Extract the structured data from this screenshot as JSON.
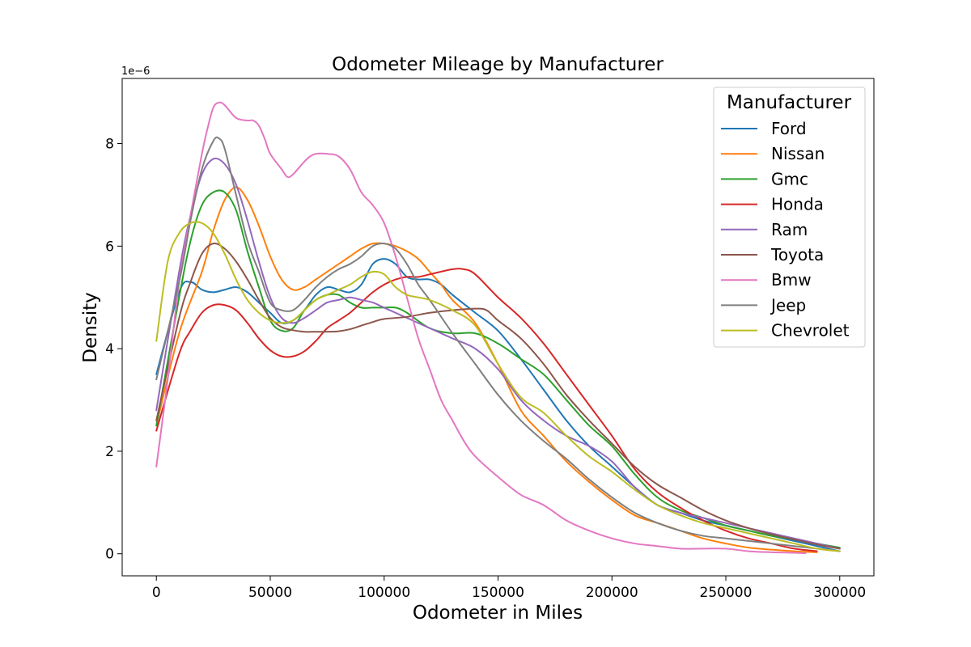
{
  "chart_data": {
    "type": "line",
    "title": "Odometer Mileage by Manufacturer",
    "xlabel": "Odometer in Miles",
    "ylabel": "Density",
    "y_scale_label": "1e−6",
    "y_multiplier": 1e-06,
    "xlim": [
      -15000,
      315000
    ],
    "ylim": [
      -0.43,
      9.27
    ],
    "xticks": [
      0,
      50000,
      100000,
      150000,
      200000,
      250000,
      300000
    ],
    "xtick_labels": [
      "0",
      "50000",
      "100000",
      "150000",
      "200000",
      "250000",
      "300000"
    ],
    "yticks": [
      0,
      2,
      4,
      6,
      8
    ],
    "ytick_labels": [
      "0",
      "2",
      "4",
      "6",
      "8"
    ],
    "grid": false,
    "legend_title": "Manufacturer",
    "legend_position": "top-right",
    "series": [
      {
        "name": "Ford",
        "color": "#1f77b4",
        "x": [
          0,
          10000,
          15000,
          20000,
          25000,
          30000,
          35000,
          40000,
          45000,
          50000,
          55000,
          60000,
          65000,
          70000,
          75000,
          80000,
          85000,
          90000,
          95000,
          100000,
          105000,
          110000,
          115000,
          120000,
          125000,
          130000,
          140000,
          150000,
          160000,
          170000,
          180000,
          190000,
          200000,
          210000,
          220000,
          230000,
          240000,
          250000,
          260000,
          270000,
          280000,
          290000,
          300000
        ],
        "y": [
          3.5,
          5.1,
          5.3,
          5.15,
          5.1,
          5.15,
          5.2,
          5.1,
          4.9,
          4.7,
          4.5,
          4.55,
          4.75,
          5.05,
          5.2,
          5.15,
          5.1,
          5.25,
          5.65,
          5.75,
          5.65,
          5.4,
          5.35,
          5.35,
          5.25,
          5.05,
          4.7,
          4.35,
          3.8,
          3.2,
          2.6,
          2.1,
          1.7,
          1.3,
          0.95,
          0.8,
          0.65,
          0.55,
          0.45,
          0.35,
          0.25,
          0.15,
          0.05
        ]
      },
      {
        "name": "Nissan",
        "color": "#ff7f0e",
        "x": [
          0,
          10000,
          20000,
          25000,
          30000,
          35000,
          40000,
          45000,
          50000,
          55000,
          60000,
          65000,
          70000,
          75000,
          80000,
          85000,
          90000,
          95000,
          100000,
          105000,
          110000,
          115000,
          120000,
          125000,
          130000,
          140000,
          150000,
          160000,
          170000,
          180000,
          190000,
          200000,
          210000,
          220000,
          230000,
          240000,
          250000,
          260000,
          270000,
          280000,
          290000
        ],
        "y": [
          2.5,
          4.3,
          5.5,
          6.3,
          6.9,
          7.15,
          6.9,
          6.4,
          5.8,
          5.35,
          5.15,
          5.2,
          5.35,
          5.5,
          5.65,
          5.8,
          5.95,
          6.05,
          6.05,
          6.0,
          5.9,
          5.75,
          5.5,
          5.25,
          4.95,
          4.5,
          3.7,
          2.8,
          2.3,
          1.8,
          1.4,
          1.05,
          0.75,
          0.6,
          0.45,
          0.3,
          0.2,
          0.12,
          0.08,
          0.05,
          0.03
        ]
      },
      {
        "name": "Gmc",
        "color": "#2ca02c",
        "x": [
          0,
          10000,
          15000,
          20000,
          25000,
          30000,
          35000,
          40000,
          45000,
          50000,
          55000,
          60000,
          65000,
          70000,
          75000,
          80000,
          85000,
          90000,
          95000,
          100000,
          105000,
          110000,
          120000,
          130000,
          140000,
          150000,
          160000,
          170000,
          180000,
          190000,
          200000,
          210000,
          220000,
          230000,
          240000,
          250000,
          260000,
          270000,
          280000,
          290000,
          300000
        ],
        "y": [
          2.5,
          5.0,
          6.1,
          6.8,
          7.05,
          7.05,
          6.7,
          5.9,
          5.2,
          4.55,
          4.35,
          4.4,
          4.75,
          4.95,
          5.05,
          5.05,
          4.9,
          4.8,
          4.8,
          4.8,
          4.8,
          4.7,
          4.4,
          4.3,
          4.3,
          4.1,
          3.8,
          3.5,
          3.0,
          2.5,
          2.1,
          1.55,
          1.1,
          0.85,
          0.7,
          0.55,
          0.45,
          0.35,
          0.28,
          0.2,
          0.12
        ]
      },
      {
        "name": "Honda",
        "color": "#d62728",
        "x": [
          0,
          10000,
          15000,
          20000,
          25000,
          30000,
          35000,
          40000,
          45000,
          50000,
          55000,
          60000,
          65000,
          70000,
          75000,
          80000,
          85000,
          90000,
          95000,
          100000,
          105000,
          110000,
          115000,
          120000,
          130000,
          135000,
          140000,
          150000,
          160000,
          170000,
          180000,
          190000,
          200000,
          210000,
          220000,
          230000,
          240000,
          250000,
          260000,
          270000,
          280000,
          290000
        ],
        "y": [
          2.4,
          3.9,
          4.35,
          4.7,
          4.85,
          4.85,
          4.75,
          4.5,
          4.2,
          3.97,
          3.85,
          3.85,
          3.95,
          4.15,
          4.4,
          4.55,
          4.7,
          4.9,
          5.1,
          5.25,
          5.35,
          5.4,
          5.4,
          5.45,
          5.55,
          5.55,
          5.45,
          5.0,
          4.6,
          4.1,
          3.5,
          2.9,
          2.3,
          1.65,
          1.2,
          0.9,
          0.65,
          0.45,
          0.3,
          0.2,
          0.1,
          0.05
        ]
      },
      {
        "name": "Ram",
        "color": "#9467bd",
        "x": [
          0,
          10000,
          15000,
          20000,
          25000,
          30000,
          35000,
          40000,
          45000,
          50000,
          55000,
          60000,
          65000,
          70000,
          75000,
          80000,
          85000,
          90000,
          95000,
          100000,
          110000,
          120000,
          130000,
          140000,
          150000,
          160000,
          170000,
          180000,
          190000,
          200000,
          210000,
          220000,
          230000,
          240000,
          250000,
          260000,
          270000,
          280000,
          290000,
          300000
        ],
        "y": [
          2.8,
          5.5,
          6.6,
          7.4,
          7.7,
          7.6,
          7.2,
          6.5,
          5.7,
          5.0,
          4.6,
          4.5,
          4.6,
          4.75,
          4.9,
          4.95,
          5.0,
          4.95,
          4.9,
          4.8,
          4.6,
          4.4,
          4.2,
          4.0,
          3.6,
          3.0,
          2.6,
          2.3,
          2.1,
          1.8,
          1.3,
          0.95,
          0.8,
          0.7,
          0.6,
          0.5,
          0.4,
          0.3,
          0.2,
          0.1
        ]
      },
      {
        "name": "Toyota",
        "color": "#8c564b",
        "x": [
          0,
          10000,
          15000,
          20000,
          25000,
          30000,
          35000,
          40000,
          45000,
          50000,
          55000,
          60000,
          65000,
          70000,
          75000,
          80000,
          85000,
          90000,
          95000,
          100000,
          110000,
          120000,
          130000,
          140000,
          145000,
          150000,
          160000,
          170000,
          180000,
          190000,
          200000,
          210000,
          220000,
          230000,
          240000,
          250000,
          260000,
          270000,
          280000,
          290000,
          300000
        ],
        "y": [
          2.6,
          4.6,
          5.3,
          5.85,
          6.05,
          5.95,
          5.7,
          5.35,
          4.95,
          4.6,
          4.42,
          4.36,
          4.33,
          4.33,
          4.33,
          4.34,
          4.38,
          4.45,
          4.52,
          4.58,
          4.62,
          4.7,
          4.75,
          4.78,
          4.75,
          4.55,
          4.2,
          3.7,
          3.1,
          2.6,
          2.15,
          1.7,
          1.35,
          1.1,
          0.85,
          0.65,
          0.5,
          0.38,
          0.28,
          0.18,
          0.1
        ]
      },
      {
        "name": "Bmw",
        "color": "#e377c2",
        "x": [
          0,
          5000,
          10000,
          15000,
          20000,
          22500,
          25000,
          27500,
          30000,
          35000,
          40000,
          42500,
          45000,
          47500,
          50000,
          55000,
          57500,
          60000,
          65000,
          67500,
          70000,
          75000,
          80000,
          85000,
          90000,
          95000,
          100000,
          105000,
          110000,
          115000,
          120000,
          125000,
          130000,
          135000,
          140000,
          150000,
          160000,
          170000,
          180000,
          190000,
          200000,
          210000,
          220000,
          230000,
          240000,
          250000,
          260000,
          270000,
          280000,
          285000
        ],
        "y": [
          1.7,
          3.4,
          5.3,
          6.6,
          7.8,
          8.3,
          8.7,
          8.8,
          8.75,
          8.5,
          8.45,
          8.45,
          8.35,
          8.1,
          7.8,
          7.5,
          7.35,
          7.4,
          7.65,
          7.75,
          7.8,
          7.8,
          7.75,
          7.5,
          7.05,
          6.8,
          6.45,
          5.8,
          5.0,
          4.2,
          3.6,
          3.0,
          2.6,
          2.2,
          1.9,
          1.5,
          1.15,
          0.95,
          0.65,
          0.45,
          0.3,
          0.2,
          0.15,
          0.1,
          0.1,
          0.1,
          0.05,
          0.03,
          0.02,
          0.01
        ]
      },
      {
        "name": "Jeep",
        "color": "#7f7f7f",
        "x": [
          0,
          10000,
          15000,
          20000,
          25000,
          27500,
          30000,
          35000,
          40000,
          45000,
          50000,
          55000,
          60000,
          65000,
          70000,
          75000,
          80000,
          85000,
          90000,
          95000,
          100000,
          105000,
          110000,
          115000,
          120000,
          130000,
          140000,
          150000,
          160000,
          170000,
          180000,
          190000,
          200000,
          210000,
          220000,
          230000,
          240000,
          250000,
          260000,
          270000,
          280000,
          290000,
          300000
        ],
        "y": [
          3.4,
          5.3,
          6.5,
          7.5,
          8.05,
          8.1,
          7.9,
          7.0,
          6.1,
          5.5,
          4.9,
          4.75,
          4.75,
          4.95,
          5.2,
          5.4,
          5.55,
          5.65,
          5.8,
          6.0,
          6.05,
          5.95,
          5.65,
          5.25,
          4.95,
          4.3,
          3.7,
          3.1,
          2.6,
          2.2,
          1.85,
          1.45,
          1.1,
          0.8,
          0.6,
          0.45,
          0.35,
          0.3,
          0.25,
          0.2,
          0.15,
          0.1,
          0.05
        ]
      },
      {
        "name": "Chevrolet",
        "color": "#bcbd22",
        "x": [
          0,
          5000,
          10000,
          15000,
          20000,
          25000,
          30000,
          35000,
          40000,
          45000,
          50000,
          55000,
          60000,
          65000,
          70000,
          75000,
          80000,
          85000,
          90000,
          95000,
          100000,
          105000,
          110000,
          115000,
          120000,
          130000,
          140000,
          150000,
          160000,
          170000,
          180000,
          190000,
          200000,
          210000,
          220000,
          230000,
          240000,
          250000,
          260000,
          270000,
          280000,
          290000,
          300000
        ],
        "y": [
          4.15,
          5.7,
          6.25,
          6.45,
          6.45,
          6.25,
          5.85,
          5.35,
          4.95,
          4.7,
          4.55,
          4.5,
          4.55,
          4.75,
          4.95,
          5.05,
          5.15,
          5.25,
          5.4,
          5.5,
          5.45,
          5.2,
          5.05,
          5.0,
          4.95,
          4.75,
          4.45,
          3.7,
          3.05,
          2.75,
          2.3,
          1.9,
          1.6,
          1.25,
          0.95,
          0.75,
          0.6,
          0.5,
          0.4,
          0.3,
          0.2,
          0.1,
          0.05
        ]
      }
    ]
  }
}
